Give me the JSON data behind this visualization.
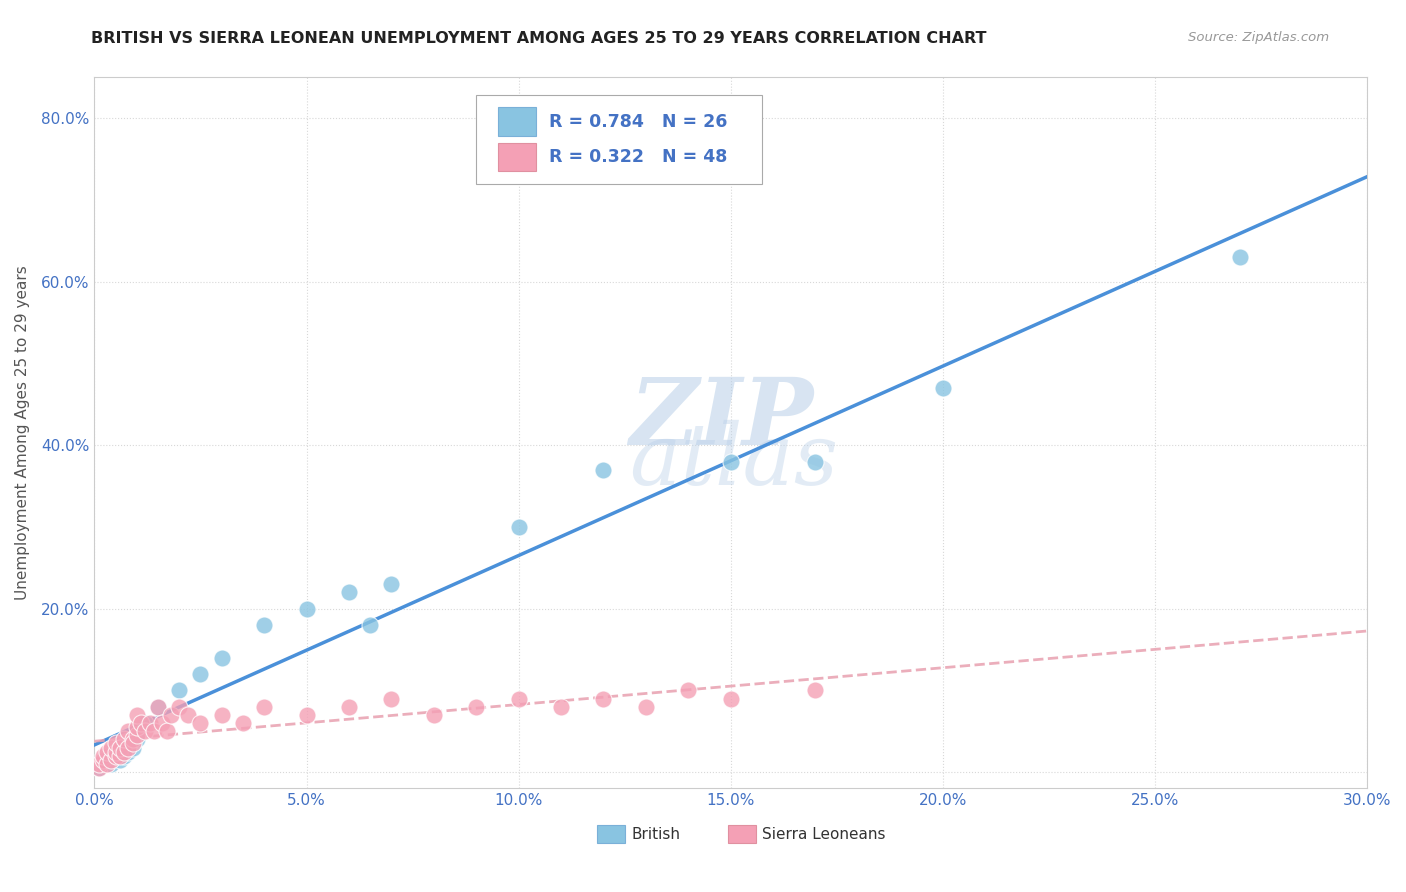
{
  "title": "BRITISH VS SIERRA LEONEAN UNEMPLOYMENT AMONG AGES 25 TO 29 YEARS CORRELATION CHART",
  "source": "Source: ZipAtlas.com",
  "ylabel": "Unemployment Among Ages 25 to 29 years",
  "xlim": [
    0.0,
    0.3
  ],
  "ylim": [
    -0.02,
    0.85
  ],
  "xticks": [
    0.0,
    0.05,
    0.1,
    0.15,
    0.2,
    0.25,
    0.3
  ],
  "yticks": [
    0.0,
    0.2,
    0.4,
    0.6,
    0.8
  ],
  "british_R": 0.784,
  "british_N": 26,
  "sierra_R": 0.322,
  "sierra_N": 48,
  "british_color": "#89c4e1",
  "sierra_color": "#f4a0b5",
  "british_line_color": "#4a90d9",
  "sierra_line_color": "#e8a0b0",
  "background_color": "#ffffff",
  "grid_color": "#d8d8d8",
  "british_x": [
    0.001,
    0.002,
    0.003,
    0.004,
    0.005,
    0.006,
    0.007,
    0.008,
    0.009,
    0.01,
    0.012,
    0.015,
    0.02,
    0.025,
    0.03,
    0.04,
    0.05,
    0.06,
    0.065,
    0.07,
    0.1,
    0.12,
    0.15,
    0.17,
    0.2,
    0.27
  ],
  "british_y": [
    0.005,
    0.01,
    0.015,
    0.01,
    0.02,
    0.015,
    0.02,
    0.025,
    0.03,
    0.04,
    0.06,
    0.08,
    0.1,
    0.12,
    0.14,
    0.18,
    0.2,
    0.22,
    0.18,
    0.23,
    0.3,
    0.37,
    0.38,
    0.38,
    0.47,
    0.63
  ],
  "sierra_x": [
    0.001,
    0.001,
    0.002,
    0.002,
    0.003,
    0.003,
    0.004,
    0.004,
    0.005,
    0.005,
    0.005,
    0.006,
    0.006,
    0.007,
    0.007,
    0.008,
    0.008,
    0.009,
    0.009,
    0.01,
    0.01,
    0.01,
    0.011,
    0.012,
    0.013,
    0.014,
    0.015,
    0.016,
    0.017,
    0.018,
    0.02,
    0.022,
    0.025,
    0.03,
    0.035,
    0.04,
    0.05,
    0.06,
    0.07,
    0.08,
    0.09,
    0.1,
    0.11,
    0.12,
    0.13,
    0.14,
    0.15,
    0.17
  ],
  "sierra_y": [
    0.005,
    0.01,
    0.015,
    0.02,
    0.01,
    0.025,
    0.015,
    0.03,
    0.02,
    0.025,
    0.035,
    0.02,
    0.03,
    0.025,
    0.04,
    0.03,
    0.05,
    0.04,
    0.035,
    0.045,
    0.055,
    0.07,
    0.06,
    0.05,
    0.06,
    0.05,
    0.08,
    0.06,
    0.05,
    0.07,
    0.08,
    0.07,
    0.06,
    0.07,
    0.06,
    0.08,
    0.07,
    0.08,
    0.09,
    0.07,
    0.08,
    0.09,
    0.08,
    0.09,
    0.08,
    0.1,
    0.09,
    0.1
  ],
  "watermark_zip": "ZIP",
  "watermark_atlas": "atlas",
  "axis_color": "#4472c4",
  "title_color": "#222222",
  "title_fontsize": 11.5,
  "tick_fontsize": 11,
  "ylabel_fontsize": 11
}
